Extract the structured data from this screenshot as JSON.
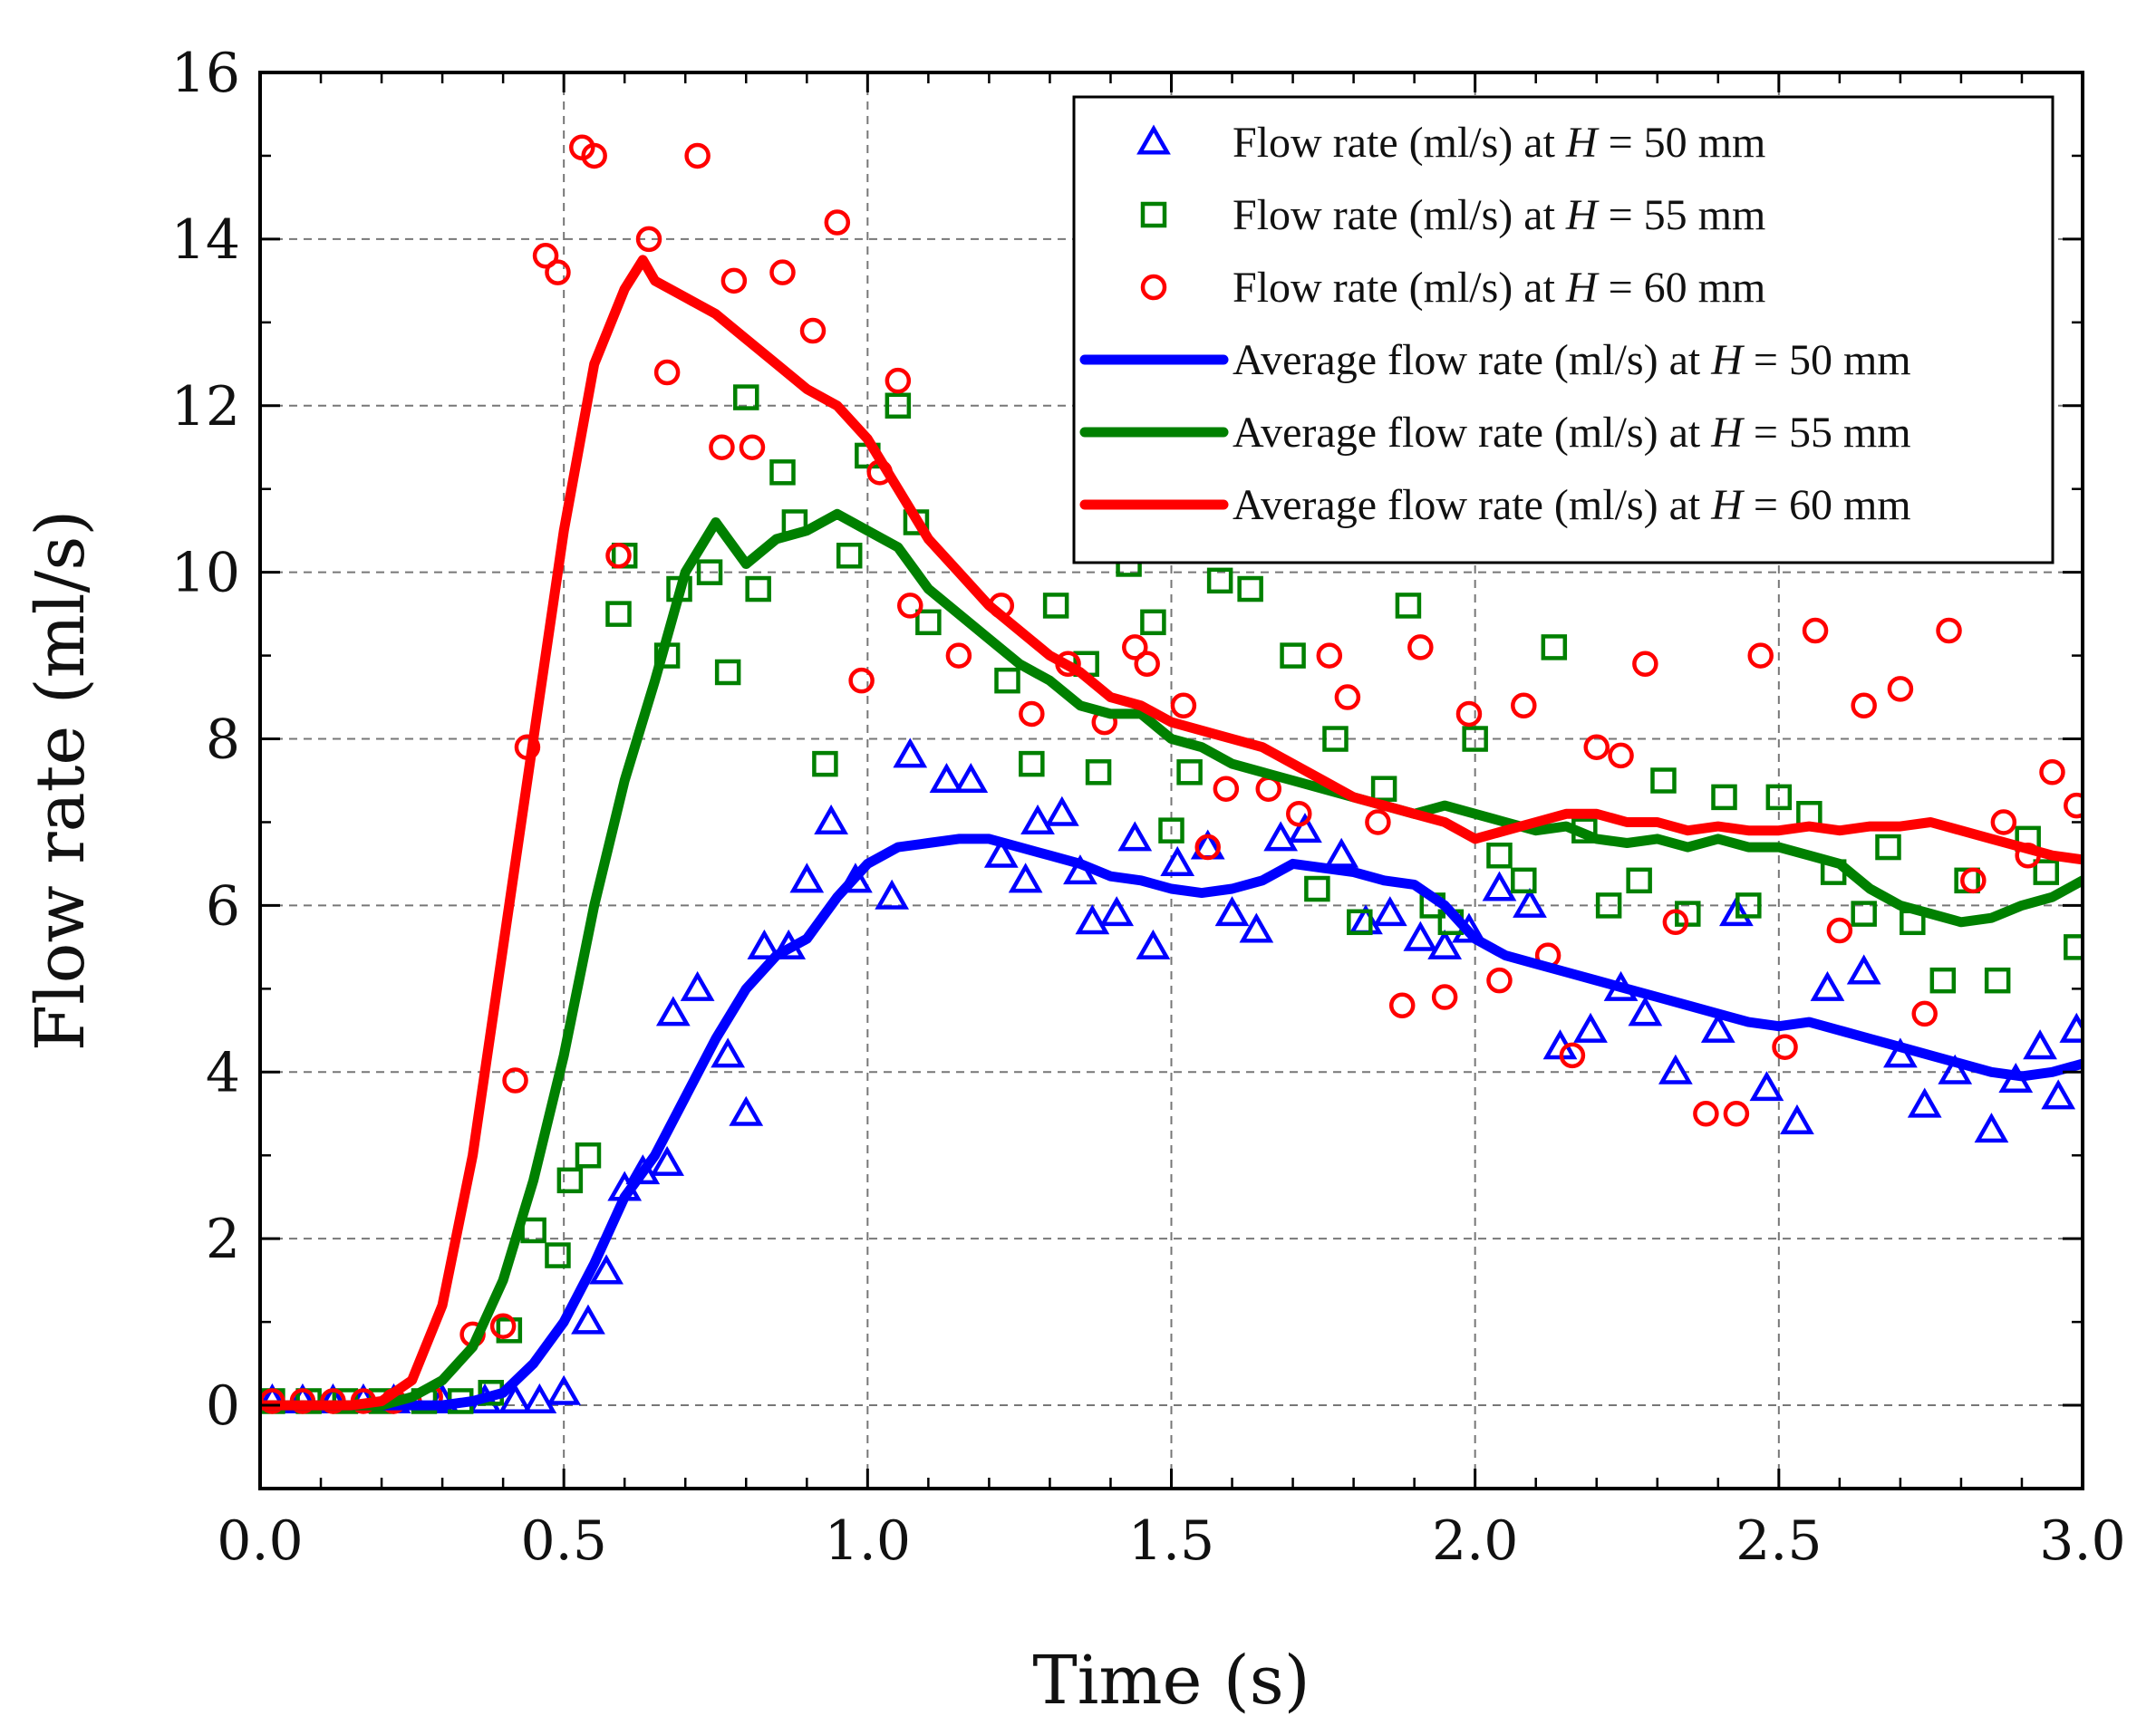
{
  "chart_data": {
    "type": "scatter",
    "xlabel": "Time (s)",
    "ylabel": "Flow rate (ml/s)",
    "xlim": [
      0.0,
      3.0
    ],
    "ylim": [
      -1,
      16
    ],
    "x_ticks": [
      0.0,
      0.5,
      1.0,
      1.5,
      2.0,
      2.5,
      3.0
    ],
    "x_tick_labels": [
      "0.0",
      "0.5",
      "1.0",
      "1.5",
      "2.0",
      "2.5",
      "3.0"
    ],
    "y_ticks": [
      0,
      2,
      4,
      6,
      8,
      10,
      12,
      14,
      16
    ],
    "y_tick_labels": [
      "0",
      "2",
      "4",
      "6",
      "8",
      "10",
      "12",
      "14",
      "16"
    ],
    "grid": true,
    "legend_position": "top-right",
    "legend": [
      {
        "prefix": "Flow rate (ml/s) at ",
        "var": "H",
        "suffix": " = 50 mm",
        "kind": "triangle",
        "color": "#0000ff"
      },
      {
        "prefix": "Flow rate (ml/s) at ",
        "var": "H",
        "suffix": " = 55 mm",
        "kind": "square",
        "color": "#008000"
      },
      {
        "prefix": "Flow rate (ml/s) at ",
        "var": "H",
        "suffix": " = 60 mm",
        "kind": "circle",
        "color": "#ff0000"
      },
      {
        "prefix": "Average flow rate (ml/s) at ",
        "var": "H",
        "suffix": " = 50 mm",
        "kind": "line",
        "color": "#0000ff"
      },
      {
        "prefix": "Average flow rate (ml/s) at ",
        "var": "H",
        "suffix": " = 55 mm",
        "kind": "line",
        "color": "#008000"
      },
      {
        "prefix": "Average flow rate (ml/s) at ",
        "var": "H",
        "suffix": " = 60 mm",
        "kind": "line",
        "color": "#ff0000"
      }
    ],
    "series": [
      {
        "name": "Flow rate (ml/s) at H = 50 mm",
        "kind": "triangle",
        "color": "#0000ff",
        "x": [
          0.02,
          0.07,
          0.12,
          0.17,
          0.22,
          0.3,
          0.37,
          0.42,
          0.46,
          0.5,
          0.54,
          0.57,
          0.6,
          0.63,
          0.67,
          0.68,
          0.72,
          0.77,
          0.8,
          0.83,
          0.87,
          0.9,
          0.94,
          0.98,
          1.04,
          1.07,
          1.13,
          1.17,
          1.22,
          1.26,
          1.28,
          1.32,
          1.35,
          1.37,
          1.41,
          1.44,
          1.47,
          1.51,
          1.56,
          1.6,
          1.64,
          1.68,
          1.72,
          1.78,
          1.82,
          1.86,
          1.91,
          1.95,
          1.99,
          2.04,
          2.09,
          2.14,
          2.19,
          2.24,
          2.28,
          2.33,
          2.4,
          2.43,
          2.48,
          2.53,
          2.58,
          2.64,
          2.7,
          2.74,
          2.79,
          2.85,
          2.89,
          2.93,
          2.96,
          2.99
        ],
        "y": [
          0.05,
          0.05,
          0.05,
          0.05,
          0.05,
          0.05,
          0.05,
          0.05,
          0.05,
          0.15,
          1.0,
          1.6,
          2.6,
          2.8,
          2.9,
          4.7,
          5.0,
          4.2,
          3.5,
          5.5,
          5.5,
          6.3,
          7.0,
          6.3,
          6.1,
          7.8,
          7.5,
          7.5,
          6.6,
          6.3,
          7.0,
          7.1,
          6.4,
          5.8,
          5.9,
          6.8,
          5.5,
          6.5,
          6.7,
          5.9,
          5.7,
          6.8,
          6.9,
          6.6,
          5.8,
          5.9,
          5.6,
          5.5,
          5.7,
          6.2,
          6.0,
          4.3,
          4.5,
          5.0,
          4.7,
          4.0,
          4.5,
          5.9,
          3.8,
          3.4,
          5.0,
          5.2,
          4.2,
          3.6,
          4.0,
          3.3,
          3.9,
          4.3,
          3.7,
          4.5
        ]
      },
      {
        "name": "Flow rate (ml/s) at H = 55 mm",
        "kind": "square",
        "color": "#008000",
        "x": [
          0.02,
          0.08,
          0.14,
          0.2,
          0.27,
          0.33,
          0.38,
          0.41,
          0.45,
          0.49,
          0.51,
          0.54,
          0.59,
          0.6,
          0.67,
          0.69,
          0.74,
          0.77,
          0.8,
          0.82,
          0.86,
          0.88,
          0.93,
          0.97,
          1.0,
          1.05,
          1.08,
          1.1,
          1.23,
          1.27,
          1.31,
          1.36,
          1.38,
          1.43,
          1.47,
          1.5,
          1.53,
          1.58,
          1.63,
          1.7,
          1.74,
          1.77,
          1.81,
          1.85,
          1.89,
          1.93,
          1.96,
          2.0,
          2.04,
          2.08,
          2.13,
          2.18,
          2.22,
          2.27,
          2.31,
          2.35,
          2.41,
          2.45,
          2.5,
          2.55,
          2.59,
          2.64,
          2.68,
          2.72,
          2.77,
          2.81,
          2.86,
          2.91,
          2.94,
          2.99
        ],
        "y": [
          0.05,
          0.05,
          0.05,
          0.05,
          0.05,
          0.05,
          0.15,
          0.9,
          2.1,
          1.8,
          2.7,
          3.0,
          9.5,
          10.2,
          9.0,
          9.8,
          10.0,
          8.8,
          12.1,
          9.8,
          11.2,
          10.6,
          7.7,
          10.2,
          11.4,
          12.0,
          10.6,
          9.4,
          8.7,
          7.7,
          9.6,
          8.9,
          7.6,
          10.1,
          9.4,
          6.9,
          7.6,
          9.9,
          9.8,
          9.0,
          6.2,
          8.0,
          5.8,
          7.4,
          9.6,
          6.0,
          5.8,
          8.0,
          6.6,
          6.3,
          9.1,
          6.9,
          6.0,
          6.3,
          7.5,
          5.9,
          7.3,
          6.0,
          7.3,
          7.1,
          6.4,
          5.9,
          6.7,
          5.8,
          5.1,
          6.3,
          5.1,
          6.8,
          6.4,
          5.5
        ]
      },
      {
        "name": "Flow rate (ml/s) at H = 60 mm",
        "kind": "circle",
        "color": "#ff0000",
        "x": [
          0.02,
          0.07,
          0.12,
          0.17,
          0.22,
          0.28,
          0.35,
          0.4,
          0.42,
          0.44,
          0.47,
          0.49,
          0.53,
          0.55,
          0.59,
          0.64,
          0.67,
          0.72,
          0.76,
          0.78,
          0.81,
          0.86,
          0.91,
          0.95,
          0.99,
          1.02,
          1.05,
          1.07,
          1.15,
          1.22,
          1.27,
          1.33,
          1.39,
          1.44,
          1.46,
          1.52,
          1.56,
          1.59,
          1.66,
          1.71,
          1.76,
          1.79,
          1.84,
          1.88,
          1.91,
          1.95,
          1.99,
          2.04,
          2.08,
          2.12,
          2.16,
          2.2,
          2.24,
          2.28,
          2.33,
          2.38,
          2.43,
          2.47,
          2.51,
          2.56,
          2.6,
          2.64,
          2.7,
          2.74,
          2.78,
          2.82,
          2.87,
          2.91,
          2.95,
          2.99
        ],
        "y": [
          0.05,
          0.05,
          0.05,
          0.05,
          0.05,
          0.1,
          0.85,
          0.95,
          3.9,
          7.9,
          13.8,
          13.6,
          15.1,
          15.0,
          10.2,
          14.0,
          12.4,
          15.0,
          11.5,
          13.5,
          11.5,
          13.6,
          12.9,
          14.2,
          8.7,
          11.2,
          12.3,
          9.6,
          9.0,
          9.6,
          8.3,
          8.9,
          8.2,
          9.1,
          8.9,
          8.4,
          6.7,
          7.4,
          7.4,
          7.1,
          9.0,
          8.5,
          7.0,
          4.8,
          9.1,
          4.9,
          8.3,
          5.1,
          8.4,
          5.4,
          4.2,
          7.9,
          7.8,
          8.9,
          5.8,
          3.5,
          3.5,
          9.0,
          4.3,
          9.3,
          5.7,
          8.4,
          8.6,
          4.7,
          9.3,
          6.3,
          7.0,
          6.6,
          7.6,
          7.2
        ]
      },
      {
        "name": "Average flow rate (ml/s) at H = 50 mm",
        "kind": "line",
        "color": "#0000ff",
        "x": [
          0.0,
          0.1,
          0.2,
          0.3,
          0.35,
          0.4,
          0.45,
          0.5,
          0.55,
          0.6,
          0.65,
          0.7,
          0.75,
          0.8,
          0.85,
          0.9,
          0.95,
          1.0,
          1.05,
          1.1,
          1.15,
          1.2,
          1.25,
          1.3,
          1.35,
          1.4,
          1.45,
          1.5,
          1.55,
          1.6,
          1.65,
          1.7,
          1.75,
          1.8,
          1.85,
          1.9,
          1.95,
          2.0,
          2.05,
          2.1,
          2.15,
          2.2,
          2.25,
          2.3,
          2.35,
          2.4,
          2.45,
          2.5,
          2.55,
          2.6,
          2.65,
          2.7,
          2.75,
          2.8,
          2.85,
          2.9,
          2.95,
          3.0
        ],
        "y": [
          0.0,
          0.0,
          0.0,
          0.0,
          0.05,
          0.15,
          0.5,
          1.0,
          1.7,
          2.5,
          3.0,
          3.7,
          4.4,
          5.0,
          5.4,
          5.6,
          6.1,
          6.5,
          6.7,
          6.75,
          6.8,
          6.8,
          6.7,
          6.6,
          6.5,
          6.35,
          6.3,
          6.2,
          6.15,
          6.2,
          6.3,
          6.5,
          6.45,
          6.4,
          6.3,
          6.25,
          6.0,
          5.6,
          5.4,
          5.3,
          5.2,
          5.1,
          5.0,
          4.9,
          4.8,
          4.7,
          4.6,
          4.55,
          4.6,
          4.5,
          4.4,
          4.3,
          4.2,
          4.1,
          4.0,
          3.95,
          4.0,
          4.1
        ]
      },
      {
        "name": "Average flow rate (ml/s) at H = 55 mm",
        "kind": "line",
        "color": "#008000",
        "x": [
          0.0,
          0.1,
          0.2,
          0.25,
          0.3,
          0.35,
          0.4,
          0.45,
          0.5,
          0.55,
          0.6,
          0.65,
          0.7,
          0.75,
          0.8,
          0.85,
          0.9,
          0.95,
          1.0,
          1.05,
          1.1,
          1.15,
          1.2,
          1.25,
          1.3,
          1.35,
          1.4,
          1.45,
          1.5,
          1.55,
          1.6,
          1.65,
          1.7,
          1.75,
          1.8,
          1.85,
          1.9,
          1.95,
          2.0,
          2.05,
          2.1,
          2.15,
          2.2,
          2.25,
          2.3,
          2.35,
          2.4,
          2.45,
          2.5,
          2.55,
          2.6,
          2.65,
          2.7,
          2.75,
          2.8,
          2.85,
          2.9,
          2.95,
          3.0
        ],
        "y": [
          0.0,
          0.0,
          0.0,
          0.1,
          0.3,
          0.7,
          1.5,
          2.7,
          4.2,
          6.0,
          7.5,
          8.7,
          10.0,
          10.6,
          10.1,
          10.4,
          10.5,
          10.7,
          10.5,
          10.3,
          9.8,
          9.5,
          9.2,
          8.9,
          8.7,
          8.4,
          8.3,
          8.3,
          8.0,
          7.9,
          7.7,
          7.6,
          7.5,
          7.4,
          7.3,
          7.2,
          7.1,
          7.2,
          7.1,
          7.0,
          6.9,
          6.95,
          6.8,
          6.75,
          6.8,
          6.7,
          6.8,
          6.7,
          6.7,
          6.6,
          6.5,
          6.2,
          6.0,
          5.9,
          5.8,
          5.85,
          6.0,
          6.1,
          6.3
        ]
      },
      {
        "name": "Average flow rate (ml/s) at H = 60 mm",
        "kind": "line",
        "color": "#ff0000",
        "x": [
          0.0,
          0.1,
          0.15,
          0.2,
          0.25,
          0.3,
          0.35,
          0.4,
          0.45,
          0.5,
          0.55,
          0.6,
          0.63,
          0.65,
          0.7,
          0.75,
          0.8,
          0.85,
          0.9,
          0.95,
          1.0,
          1.05,
          1.1,
          1.15,
          1.2,
          1.25,
          1.3,
          1.35,
          1.4,
          1.45,
          1.5,
          1.55,
          1.6,
          1.65,
          1.7,
          1.75,
          1.8,
          1.85,
          1.9,
          1.95,
          2.0,
          2.05,
          2.1,
          2.15,
          2.2,
          2.25,
          2.3,
          2.35,
          2.4,
          2.45,
          2.5,
          2.55,
          2.6,
          2.65,
          2.7,
          2.75,
          2.8,
          2.85,
          2.9,
          2.95,
          3.0
        ],
        "y": [
          0.0,
          0.0,
          0.0,
          0.05,
          0.3,
          1.2,
          3.0,
          5.5,
          8.0,
          10.5,
          12.5,
          13.4,
          13.75,
          13.5,
          13.3,
          13.1,
          12.8,
          12.5,
          12.2,
          12.0,
          11.6,
          11.0,
          10.4,
          10.0,
          9.6,
          9.3,
          9.0,
          8.8,
          8.5,
          8.4,
          8.2,
          8.1,
          8.0,
          7.9,
          7.7,
          7.5,
          7.3,
          7.2,
          7.1,
          7.0,
          6.8,
          6.9,
          7.0,
          7.1,
          7.1,
          7.0,
          7.0,
          6.9,
          6.95,
          6.9,
          6.9,
          6.95,
          6.9,
          6.95,
          6.95,
          7.0,
          6.9,
          6.8,
          6.7,
          6.6,
          6.55
        ]
      }
    ]
  }
}
